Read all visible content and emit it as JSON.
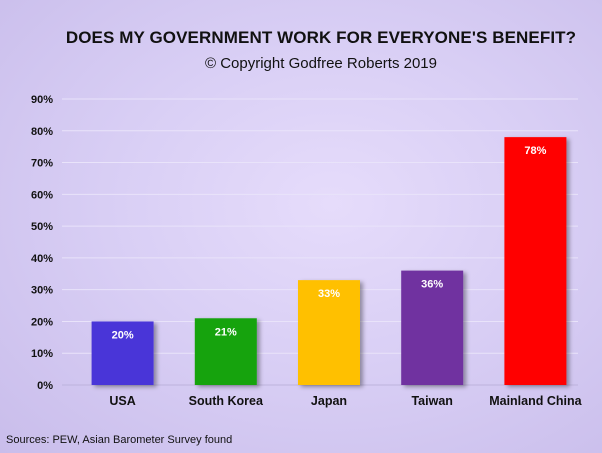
{
  "chart_data": {
    "type": "bar",
    "title": "DOES MY GOVERNMENT WORK FOR EVERYONE'S BENEFIT?",
    "subtitle": "© Copyright Godfree Roberts 2019",
    "source": "Sources: PEW, Asian Barometer Survey found",
    "categories": [
      "USA",
      "South Korea",
      "Japan",
      "Taiwan",
      "Mainland China"
    ],
    "values": [
      20,
      21,
      33,
      36,
      78
    ],
    "data_labels": [
      "20%",
      "21%",
      "33%",
      "36%",
      "78%"
    ],
    "colors": [
      "#4a35d8",
      "#13a30f",
      "#ffc000",
      "#7030a0",
      "#ff0000"
    ],
    "ylim": [
      0,
      90
    ],
    "yticks": [
      0,
      10,
      20,
      30,
      40,
      50,
      60,
      70,
      80,
      90
    ],
    "ytick_labels": [
      "0%",
      "10%",
      "20%",
      "30%",
      "40%",
      "50%",
      "60%",
      "70%",
      "80%",
      "90%"
    ],
    "grid": true,
    "legend": "none"
  }
}
